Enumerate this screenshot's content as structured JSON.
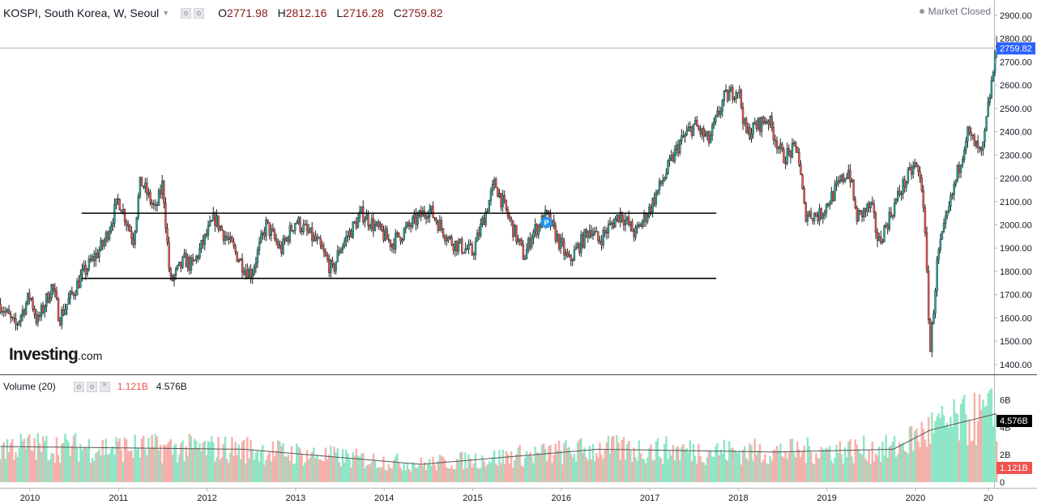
{
  "header": {
    "symbol": "KOSPI, South Korea, W, Seoul",
    "o_label": "O",
    "o_value": "2771.98",
    "h_label": "H",
    "h_value": "2812.16",
    "l_label": "L",
    "l_value": "2716.28",
    "c_label": "C",
    "c_value": "2759.82",
    "status": "Market Closed"
  },
  "volume_header": {
    "title": "Volume (20)",
    "value_a": "1.121B",
    "value_b": "4.576B"
  },
  "brand": {
    "main": "Investing",
    "suffix": ".com"
  },
  "colors": {
    "up": "#26a69a",
    "down": "#ef5350",
    "up_volume": "#8ee6c6",
    "down_volume": "#f6b0ab",
    "last_price_tag": "#2962ff",
    "ma_line": "#555555"
  },
  "chart_data": {
    "type": "candlestick",
    "price_axis": {
      "ticks": [
        1400,
        1500,
        1600,
        1700,
        1800,
        1900,
        2000,
        2100,
        2200,
        2300,
        2400,
        2500,
        2600,
        2700,
        2800,
        2900
      ],
      "tick_labels": [
        "1400.00",
        "1500.00",
        "1600.00",
        "1700.00",
        "1800.00",
        "1900.00",
        "2000.00",
        "2100.00",
        "2200.00",
        "2300.00",
        "2400.00",
        "2500.00",
        "2600.00",
        "2700.00",
        "2800.00",
        "2900.00"
      ],
      "range": [
        1370,
        2950
      ],
      "last_price_label": "2759.82"
    },
    "volume_axis": {
      "tick_labels": [
        "0",
        "2B",
        "4B",
        "6B"
      ],
      "ticks": [
        0,
        2,
        4,
        6
      ],
      "unit": "B",
      "current_volume_label": "1.121B",
      "volume_ma_label": "4.576B"
    },
    "x_axis": {
      "tick_labels": [
        "2010",
        "2011",
        "2012",
        "2013",
        "2014",
        "2015",
        "2016",
        "2017",
        "2018",
        "2019",
        "2020",
        "20"
      ],
      "range": [
        "2009-09",
        "2020-12"
      ]
    },
    "price_path": [
      [
        "2009-09",
        1660
      ],
      [
        "2009-11",
        1560
      ],
      [
        "2010-01",
        1700
      ],
      [
        "2010-02",
        1580
      ],
      [
        "2010-04",
        1740
      ],
      [
        "2010-05",
        1600
      ],
      [
        "2010-08",
        1780
      ],
      [
        "2010-11",
        1920
      ],
      [
        "2011-01",
        2110
      ],
      [
        "2011-03",
        1940
      ],
      [
        "2011-04",
        2190
      ],
      [
        "2011-06",
        2060
      ],
      [
        "2011-07",
        2180
      ],
      [
        "2011-08",
        1750
      ],
      [
        "2011-10",
        1850
      ],
      [
        "2011-11",
        1820
      ],
      [
        "2012-02",
        2030
      ],
      [
        "2012-06",
        1820
      ],
      [
        "2012-07",
        1790
      ],
      [
        "2012-09",
        2000
      ],
      [
        "2012-11",
        1890
      ],
      [
        "2013-01",
        2020
      ],
      [
        "2013-04",
        1920
      ],
      [
        "2013-06",
        1800
      ],
      [
        "2013-07",
        1900
      ],
      [
        "2013-10",
        2050
      ],
      [
        "2014-02",
        1920
      ],
      [
        "2014-07",
        2070
      ],
      [
        "2014-10",
        1930
      ],
      [
        "2015-01",
        1880
      ],
      [
        "2015-04",
        2180
      ],
      [
        "2015-08",
        1860
      ],
      [
        "2015-09",
        1960
      ],
      [
        "2015-11",
        2040
      ],
      [
        "2016-02",
        1840
      ],
      [
        "2016-05",
        1990
      ],
      [
        "2016-06",
        1930
      ],
      [
        "2016-09",
        2050
      ],
      [
        "2016-11",
        1960
      ],
      [
        "2017-01",
        2070
      ],
      [
        "2017-05",
        2350
      ],
      [
        "2017-07",
        2430
      ],
      [
        "2017-09",
        2360
      ],
      [
        "2017-11",
        2540
      ],
      [
        "2018-01",
        2590
      ],
      [
        "2018-02",
        2390
      ],
      [
        "2018-05",
        2460
      ],
      [
        "2018-07",
        2290
      ],
      [
        "2018-09",
        2330
      ],
      [
        "2018-10",
        2050
      ],
      [
        "2018-12",
        2040
      ],
      [
        "2019-04",
        2240
      ],
      [
        "2019-05",
        2030
      ],
      [
        "2019-07",
        2080
      ],
      [
        "2019-08",
        1920
      ],
      [
        "2019-11",
        2150
      ],
      [
        "2020-01",
        2260
      ],
      [
        "2020-02",
        2150
      ],
      [
        "2020-03",
        1460
      ],
      [
        "2020-04",
        1860
      ],
      [
        "2020-06",
        2130
      ],
      [
        "2020-08",
        2400
      ],
      [
        "2020-10",
        2290
      ],
      [
        "2020-11",
        2540
      ],
      [
        "2020-12",
        2760
      ]
    ],
    "annotations": [
      {
        "type": "horizontal_line",
        "price": 2050,
        "from": "2010-08",
        "to": "2017-10"
      },
      {
        "type": "horizontal_line",
        "price": 1770,
        "from": "2010-08",
        "to": "2017-10"
      },
      {
        "type": "marker",
        "label": "P",
        "date": "2015-11",
        "price": 2010
      }
    ],
    "last_candle": {
      "open": 2771.98,
      "high": 2812.16,
      "low": 2716.28,
      "close": 2759.82
    },
    "volume_path": [
      [
        "2009-09",
        2.6
      ],
      [
        "2012-06",
        2.4
      ],
      [
        "2014-06",
        1.3
      ],
      [
        "2016-06",
        2.4
      ],
      [
        "2018-06",
        2.2
      ],
      [
        "2019-10",
        2.4
      ],
      [
        "2020-03",
        3.8
      ],
      [
        "2020-12",
        5.0
      ]
    ]
  }
}
